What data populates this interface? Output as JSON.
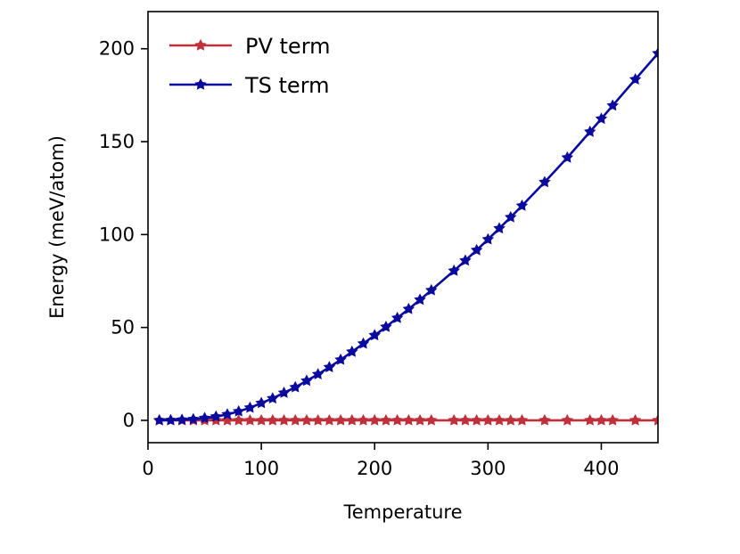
{
  "chart_data": {
    "type": "line",
    "title": "",
    "xlabel": "Temperature",
    "ylabel": "Energy (meV/atom)",
    "xlim": [
      0,
      450
    ],
    "ylim": [
      -12,
      220
    ],
    "xticks": [
      0,
      100,
      200,
      300,
      400
    ],
    "yticks": [
      0,
      50,
      100,
      150,
      200
    ],
    "grid": false,
    "legend_position": "top-left",
    "x": [
      10,
      20,
      30,
      40,
      50,
      60,
      70,
      80,
      90,
      100,
      110,
      120,
      130,
      140,
      150,
      160,
      170,
      180,
      190,
      200,
      210,
      220,
      230,
      240,
      250,
      270,
      280,
      290,
      300,
      310,
      320,
      330,
      350,
      370,
      390,
      400,
      410,
      430,
      450
    ],
    "series": [
      {
        "name": "PV term",
        "color": "#c0303a",
        "marker": "star",
        "values": [
          0.0,
          0.0,
          0.0,
          0.0,
          0.0,
          0.0,
          0.0,
          0.0,
          0.0,
          0.0,
          0.0,
          0.0,
          0.0,
          0.0,
          0.0,
          0.0,
          0.0,
          0.0,
          0.0,
          0.0,
          0.0,
          0.0,
          0.0,
          0.0,
          0.0,
          0.0,
          0.0,
          0.0,
          0.0,
          0.0,
          0.0,
          0.0,
          0.0,
          0.0,
          0.0,
          0.0,
          0.0,
          0.0,
          0.0
        ]
      },
      {
        "name": "TS term",
        "color": "#0a0a9f",
        "marker": "star",
        "values": [
          0.0,
          0.1,
          0.3,
          0.6,
          1.2,
          2.0,
          3.2,
          4.8,
          6.8,
          9.3,
          11.8,
          14.8,
          17.8,
          21.3,
          24.8,
          28.6,
          32.6,
          36.9,
          41.3,
          45.8,
          50.3,
          55.1,
          59.9,
          64.9,
          70.0,
          80.5,
          86.0,
          91.6,
          97.4,
          103.3,
          109.3,
          115.5,
          128.2,
          141.4,
          155.3,
          162.3,
          169.4,
          183.5,
          197.5
        ]
      }
    ]
  }
}
